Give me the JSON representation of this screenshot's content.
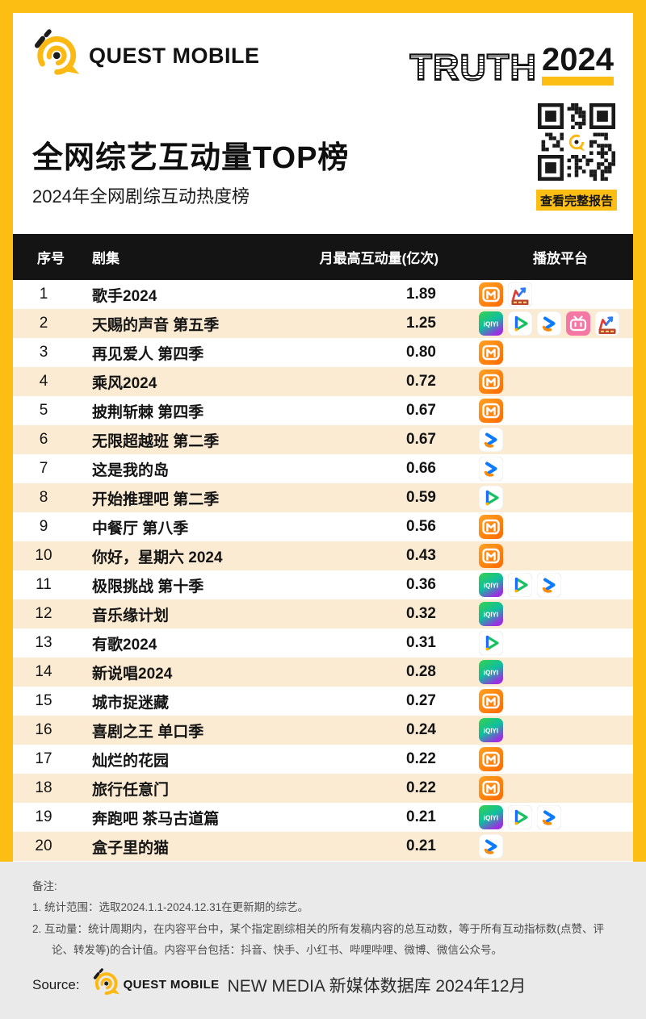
{
  "header": {
    "brand": "QUEST MOBILE",
    "truth_word": "TRUTH",
    "truth_year": "2024",
    "title": "全网综艺互动量TOP榜",
    "subtitle": "2024年全网剧综互动热度榜",
    "qr_button_label": "查看完整报告"
  },
  "colors": {
    "accent_yellow": "#FDBE14",
    "header_bar": "#141414",
    "row_alt": "#FCEBD3",
    "footer_bg": "#EAEAEA"
  },
  "table": {
    "headers": {
      "rank": "序号",
      "show": "剧集",
      "value": "月最高互动量(亿次)",
      "platform": "播放平台"
    },
    "rows": [
      {
        "rank": "1",
        "show": "歌手2024",
        "value": "1.89",
        "platforms": [
          "mgtv",
          "mtrend"
        ]
      },
      {
        "rank": "2",
        "show": "天赐的声音 第五季",
        "value": "1.25",
        "platforms": [
          "iqiyi",
          "tencent",
          "youku",
          "bilibili",
          "mtrend"
        ]
      },
      {
        "rank": "3",
        "show": "再见爱人 第四季",
        "value": "0.80",
        "platforms": [
          "mgtv"
        ]
      },
      {
        "rank": "4",
        "show": "乘风2024",
        "value": "0.72",
        "platforms": [
          "mgtv"
        ]
      },
      {
        "rank": "5",
        "show": "披荆斩棘 第四季",
        "value": "0.67",
        "platforms": [
          "mgtv"
        ]
      },
      {
        "rank": "6",
        "show": "无限超越班 第二季",
        "value": "0.67",
        "platforms": [
          "youku"
        ]
      },
      {
        "rank": "7",
        "show": "这是我的岛",
        "value": "0.66",
        "platforms": [
          "youku"
        ]
      },
      {
        "rank": "8",
        "show": "开始推理吧 第二季",
        "value": "0.59",
        "platforms": [
          "tencent"
        ]
      },
      {
        "rank": "9",
        "show": "中餐厅 第八季",
        "value": "0.56",
        "platforms": [
          "mgtv"
        ]
      },
      {
        "rank": "10",
        "show": "你好，星期六 2024",
        "value": "0.43",
        "platforms": [
          "mgtv"
        ]
      },
      {
        "rank": "11",
        "show": "极限挑战 第十季",
        "value": "0.36",
        "platforms": [
          "iqiyi",
          "tencent",
          "youku"
        ]
      },
      {
        "rank": "12",
        "show": "音乐缘计划",
        "value": "0.32",
        "platforms": [
          "iqiyi"
        ]
      },
      {
        "rank": "13",
        "show": "有歌2024",
        "value": "0.31",
        "platforms": [
          "tencent"
        ]
      },
      {
        "rank": "14",
        "show": "新说唱2024",
        "value": "0.28",
        "platforms": [
          "iqiyi"
        ]
      },
      {
        "rank": "15",
        "show": "城市捉迷藏",
        "value": "0.27",
        "platforms": [
          "mgtv"
        ]
      },
      {
        "rank": "16",
        "show": "喜剧之王 单口季",
        "value": "0.24",
        "platforms": [
          "iqiyi"
        ]
      },
      {
        "rank": "17",
        "show": "灿烂的花园",
        "value": "0.22",
        "platforms": [
          "mgtv"
        ]
      },
      {
        "rank": "18",
        "show": "旅行任意门",
        "value": "0.22",
        "platforms": [
          "mgtv"
        ]
      },
      {
        "rank": "19",
        "show": "奔跑吧 茶马古道篇",
        "value": "0.21",
        "platforms": [
          "iqiyi",
          "tencent",
          "youku"
        ]
      },
      {
        "rank": "20",
        "show": "盒子里的猫",
        "value": "0.21",
        "platforms": [
          "youku"
        ]
      }
    ]
  },
  "platforms": {
    "mgtv": "芒果TV",
    "iqiyi": "爱奇艺",
    "tencent": "腾讯视频",
    "youku": "优酷",
    "bilibili": "哔哩哔哩",
    "mtrend": "M趋势榜"
  },
  "notes": {
    "label": "备注:",
    "items": [
      "1. 统计范围：选取2024.1.1-2024.12.31在更新期的综艺。",
      "2. 互动量：统计周期内，在内容平台中，某个指定剧综相关的所有发稿内容的总互动数，等于所有互动指标数(点赞、评论、转发等)的合计值。内容平台包括：抖音、快手、小红书、哔哩哔哩、微博、微信公众号。"
    ]
  },
  "source": {
    "label": "Source:",
    "brand": "QUEST MOBILE",
    "suffix": "NEW MEDIA 新媒体数据库 2024年12月"
  },
  "chart_data": {
    "type": "table",
    "title": "全网综艺互动量TOP榜",
    "subtitle": "2024年全网剧综互动热度榜",
    "columns": [
      "序号",
      "剧集",
      "月最高互动量(亿次)",
      "播放平台"
    ],
    "categories": [
      "歌手2024",
      "天赐的声音 第五季",
      "再见爱人 第四季",
      "乘风2024",
      "披荆斩棘 第四季",
      "无限超越班 第二季",
      "这是我的岛",
      "开始推理吧 第二季",
      "中餐厅 第八季",
      "你好，星期六 2024",
      "极限挑战 第十季",
      "音乐缘计划",
      "有歌2024",
      "新说唱2024",
      "城市捉迷藏",
      "喜剧之王 单口季",
      "灿烂的花园",
      "旅行任意门",
      "奔跑吧 茶马古道篇",
      "盒子里的猫"
    ],
    "values": [
      1.89,
      1.25,
      0.8,
      0.72,
      0.67,
      0.67,
      0.66,
      0.59,
      0.56,
      0.43,
      0.36,
      0.32,
      0.31,
      0.28,
      0.27,
      0.24,
      0.22,
      0.22,
      0.21,
      0.21
    ],
    "value_unit": "亿次"
  }
}
